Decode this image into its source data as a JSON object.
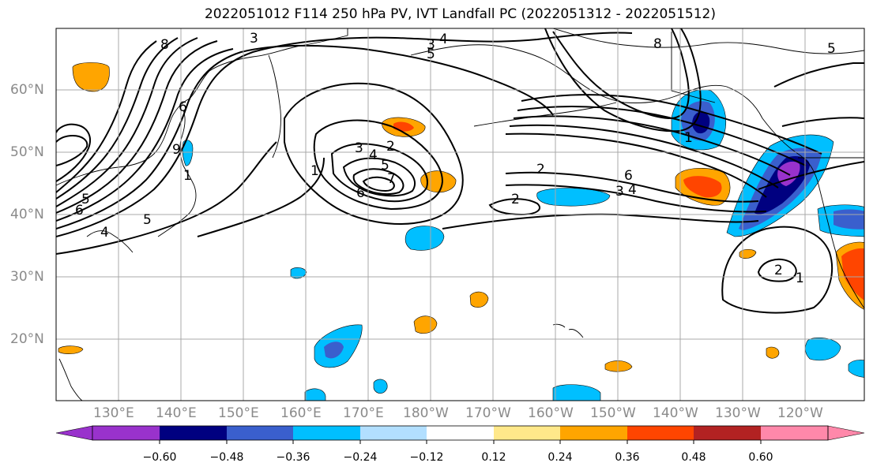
{
  "title": "2022051012 F114 250 hPa PV, IVT Landfall PC (2022051312 - 2022051512)",
  "latitude_labels": [
    "60°N",
    "50°N",
    "40°N",
    "30°N",
    "20°N"
  ],
  "longitude_labels": [
    "130°E",
    "140°E",
    "150°E",
    "160°E",
    "170°E",
    "180°W",
    "170°W",
    "160°W",
    "150°W",
    "140°W",
    "130°W",
    "120°W"
  ],
  "colorbar": {
    "colors": [
      "#9932CC",
      "#000080",
      "#3A5FCD",
      "#00BFFF",
      "#B2DFFF",
      "#FFFFFF",
      "#FFFFFF",
      "#FFE88A",
      "#FFA500",
      "#FF4500",
      "#B22222",
      "#FF88AA"
    ],
    "tick_labels": [
      "−0.60",
      "−0.48",
      "−0.36",
      "−0.24",
      "−0.12",
      "0.12",
      "0.24",
      "0.36",
      "0.48",
      "0.60"
    ]
  },
  "contour_labels": [
    "8",
    "3",
    "4",
    "5",
    "5",
    "6",
    "6",
    "8",
    "9",
    "5",
    "4",
    "5",
    "3",
    "4",
    "5",
    "2",
    "6",
    "2",
    "2",
    "6",
    "3",
    "4",
    "2",
    "1",
    "1",
    "1",
    "7",
    "1",
    "3"
  ],
  "colors": {
    "gridline": "#a8a8a8",
    "contour": "#000000",
    "coastline": "#000000"
  }
}
